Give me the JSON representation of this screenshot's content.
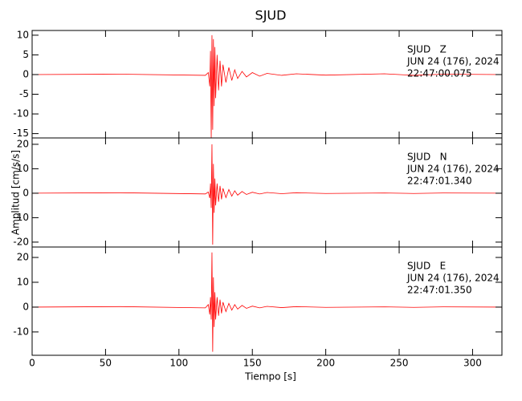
{
  "figure": {
    "title": "SJUD",
    "xlabel": "Tiempo [s]",
    "ylabel": "Amplitud [cm/s/s]"
  },
  "chart_data": [
    {
      "type": "line",
      "annotation": [
        "SJUD   Z",
        "JUN 24 (176), 2024",
        "22:47:00.075"
      ],
      "xlim": [
        0,
        320
      ],
      "xticks": [
        0,
        50,
        100,
        150,
        200,
        250,
        300
      ],
      "ylim": [
        -16.1,
        11.2
      ],
      "yticks": [
        -15,
        -10,
        -5,
        0,
        5,
        10
      ],
      "x": [
        0,
        60,
        118,
        120,
        121,
        121.5,
        122,
        122.5,
        123,
        123.5,
        124,
        124.5,
        125,
        126,
        127,
        128,
        129,
        130,
        132,
        134,
        136,
        138,
        140,
        143,
        146,
        150,
        155,
        160,
        170,
        180,
        200,
        240,
        260,
        280,
        320
      ],
      "series": [
        {
          "color": "#ff0000",
          "values": [
            0,
            0.1,
            -0.2,
            0.5,
            -3,
            6,
            -16,
            10,
            -14,
            9,
            -8,
            7,
            -6,
            5,
            -4,
            3.5,
            -3,
            2.5,
            -2,
            1.8,
            -1.5,
            1.2,
            -1,
            0.8,
            -0.6,
            0.5,
            -0.4,
            0.3,
            -0.2,
            0.2,
            -0.15,
            0.2,
            -0.2,
            0.1,
            0
          ]
        }
      ]
    },
    {
      "type": "line",
      "annotation": [
        "SJUD   N",
        "JUN 24 (176), 2024",
        "22:47:01.340"
      ],
      "xlim": [
        0,
        320
      ],
      "xticks": [
        0,
        50,
        100,
        150,
        200,
        250,
        300
      ],
      "ylim": [
        -22,
        22.6
      ],
      "yticks": [
        -20,
        -10,
        0,
        10,
        20
      ],
      "x": [
        0,
        60,
        118,
        120,
        121,
        121.5,
        122,
        122.5,
        123,
        123.5,
        124,
        124.5,
        125,
        126,
        127,
        128,
        129,
        130,
        132,
        134,
        136,
        138,
        140,
        143,
        146,
        150,
        155,
        160,
        170,
        180,
        200,
        240,
        260,
        280,
        320
      ],
      "series": [
        {
          "color": "#ff0000",
          "values": [
            0,
            0.2,
            -0.3,
            0.5,
            -2,
            4,
            -6,
            20,
            -21,
            12,
            -8,
            6,
            -5,
            4,
            -3.5,
            3,
            -2.5,
            2,
            -1.8,
            1.5,
            -1.2,
            1,
            -0.8,
            0.7,
            -0.5,
            0.4,
            -0.3,
            0.3,
            -0.2,
            0.2,
            -0.1,
            0.1,
            -0.1,
            0.1,
            0
          ]
        }
      ]
    },
    {
      "type": "line",
      "annotation": [
        "SJUD   E",
        "JUN 24 (176), 2024",
        "22:47:01.350"
      ],
      "xlim": [
        0,
        320
      ],
      "xticks": [
        0,
        50,
        100,
        150,
        200,
        250,
        300
      ],
      "ylim": [
        -19.4,
        24.2
      ],
      "yticks": [
        -10,
        0,
        10,
        20
      ],
      "x": [
        0,
        60,
        118,
        120,
        121,
        121.5,
        122,
        122.5,
        123,
        123.5,
        124,
        124.5,
        125,
        126,
        127,
        128,
        129,
        130,
        132,
        134,
        136,
        138,
        140,
        143,
        146,
        150,
        155,
        160,
        170,
        180,
        200,
        240,
        260,
        280,
        320
      ],
      "series": [
        {
          "color": "#ff0000",
          "values": [
            0,
            0.2,
            -0.3,
            1,
            -3,
            4,
            -5,
            22,
            -18,
            12,
            -8,
            6,
            -5,
            4,
            -3.5,
            3,
            -2.5,
            2,
            -1.8,
            1.5,
            -1.2,
            1,
            -0.8,
            0.7,
            -0.5,
            0.4,
            -0.3,
            0.3,
            -0.2,
            0.2,
            -0.1,
            0.1,
            -0.1,
            0.1,
            0
          ]
        }
      ]
    }
  ]
}
